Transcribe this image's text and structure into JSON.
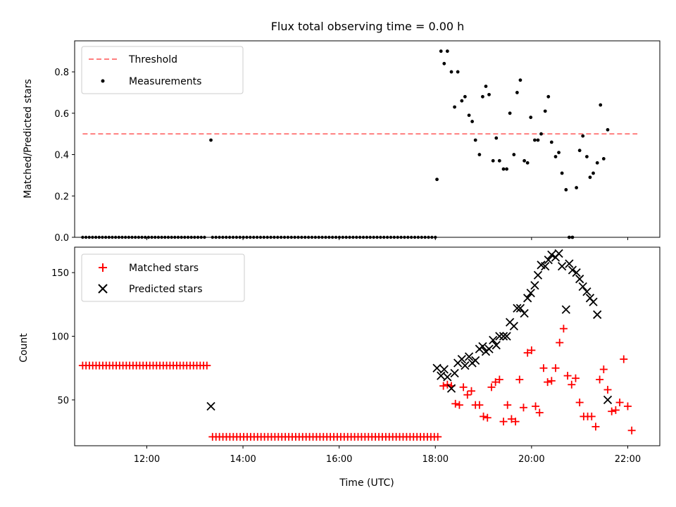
{
  "colors": {
    "threshold": "#ff7f7f",
    "matched": "#ff0000",
    "predicted": "#000000",
    "measurement": "#000000"
  },
  "chart_data": [
    {
      "type": "scatter",
      "title": "Flux total observing time = 0.00 h",
      "ylabel": "Matched/Predicted stars",
      "xlim": [
        "10:30",
        "22:40"
      ],
      "ylim": [
        0,
        0.95
      ],
      "yticks": [
        "0.0",
        "0.2",
        "0.4",
        "0.6",
        "0.8"
      ],
      "ytick_values": [
        0,
        0.2,
        0.4,
        0.6,
        0.8
      ],
      "legend_position": "top-left",
      "legend": [
        "Threshold",
        "Measurements"
      ],
      "threshold": {
        "name": "Threshold",
        "y": 0.5,
        "x_range": [
          "10:40",
          "22:12"
        ],
        "style": "dashed"
      },
      "measurements": {
        "name": "Measurements",
        "zeros_from": "10:40",
        "zeros_to": "13:12",
        "zeros_count": 38,
        "zeros2_from": "13:22",
        "zeros2_to": "18:00",
        "zeros2_count": 66,
        "points": [
          [
            "13:20",
            0.47
          ],
          [
            "18:02",
            0.28
          ],
          [
            "18:07",
            0.9
          ],
          [
            "18:11",
            0.84
          ],
          [
            "18:15",
            0.9
          ],
          [
            "18:20",
            0.8
          ],
          [
            "18:24",
            0.63
          ],
          [
            "18:28",
            0.8
          ],
          [
            "18:33",
            0.66
          ],
          [
            "18:37",
            0.68
          ],
          [
            "18:42",
            0.59
          ],
          [
            "18:46",
            0.56
          ],
          [
            "18:50",
            0.47
          ],
          [
            "18:55",
            0.4
          ],
          [
            "18:59",
            0.68
          ],
          [
            "19:03",
            0.73
          ],
          [
            "19:07",
            0.69
          ],
          [
            "19:12",
            0.37
          ],
          [
            "19:16",
            0.48
          ],
          [
            "19:20",
            0.37
          ],
          [
            "19:25",
            0.33
          ],
          [
            "19:29",
            0.33
          ],
          [
            "19:33",
            0.6
          ],
          [
            "19:38",
            0.4
          ],
          [
            "19:42",
            0.7
          ],
          [
            "19:46",
            0.76
          ],
          [
            "19:51",
            0.37
          ],
          [
            "19:55",
            0.36
          ],
          [
            "19:59",
            0.58
          ],
          [
            "20:04",
            0.47
          ],
          [
            "20:08",
            0.47
          ],
          [
            "20:12",
            0.5
          ],
          [
            "20:17",
            0.61
          ],
          [
            "20:21",
            0.68
          ],
          [
            "20:25",
            0.46
          ],
          [
            "20:30",
            0.39
          ],
          [
            "20:34",
            0.41
          ],
          [
            "20:38",
            0.31
          ],
          [
            "20:43",
            0.23
          ],
          [
            "20:47",
            0.0
          ],
          [
            "20:51",
            0.0
          ],
          [
            "20:56",
            0.24
          ],
          [
            "21:00",
            0.42
          ],
          [
            "21:04",
            0.49
          ],
          [
            "21:09",
            0.39
          ],
          [
            "21:13",
            0.29
          ],
          [
            "21:17",
            0.31
          ],
          [
            "21:22",
            0.36
          ],
          [
            "21:26",
            0.64
          ],
          [
            "21:30",
            0.38
          ],
          [
            "21:35",
            0.52
          ]
        ]
      }
    },
    {
      "type": "scatter",
      "title": "",
      "xlabel": "Time (UTC)",
      "ylabel": "Count",
      "xlim": [
        "10:30",
        "22:40"
      ],
      "xticks": [
        "12:00",
        "14:00",
        "16:00",
        "18:00",
        "20:00",
        "22:00"
      ],
      "ylim": [
        14,
        170
      ],
      "yticks": [
        "50",
        "100",
        "150"
      ],
      "ytick_values": [
        50,
        100,
        150
      ],
      "legend_position": "top-left",
      "legend": [
        "Matched stars",
        "Predicted stars"
      ],
      "matched_flat": [
        {
          "from": "10:40",
          "to": "13:15",
          "count": 38,
          "y": 77
        },
        {
          "from": "13:22",
          "to": "18:03",
          "count": 66,
          "y": 21
        }
      ],
      "matched": [
        [
          "18:10",
          61
        ],
        [
          "18:15",
          62
        ],
        [
          "18:20",
          61
        ],
        [
          "18:25",
          47
        ],
        [
          "18:30",
          46
        ],
        [
          "18:35",
          60
        ],
        [
          "18:40",
          54
        ],
        [
          "18:45",
          57
        ],
        [
          "18:50",
          46
        ],
        [
          "18:55",
          46
        ],
        [
          "19:00",
          37
        ],
        [
          "19:05",
          36
        ],
        [
          "19:10",
          60
        ],
        [
          "19:15",
          64
        ],
        [
          "19:20",
          66
        ],
        [
          "19:25",
          33
        ],
        [
          "19:30",
          46
        ],
        [
          "19:35",
          35
        ],
        [
          "19:40",
          33
        ],
        [
          "19:45",
          66
        ],
        [
          "19:50",
          44
        ],
        [
          "19:55",
          87
        ],
        [
          "20:00",
          89
        ],
        [
          "20:05",
          45
        ],
        [
          "20:10",
          40
        ],
        [
          "20:15",
          75
        ],
        [
          "20:20",
          64
        ],
        [
          "20:25",
          65
        ],
        [
          "20:30",
          75
        ],
        [
          "20:35",
          95
        ],
        [
          "20:40",
          106
        ],
        [
          "20:45",
          69
        ],
        [
          "20:50",
          62
        ],
        [
          "20:55",
          67
        ],
        [
          "21:00",
          48
        ],
        [
          "21:05",
          37
        ],
        [
          "21:10",
          37
        ],
        [
          "21:15",
          37
        ],
        [
          "21:20",
          29
        ],
        [
          "21:25",
          66
        ],
        [
          "21:30",
          74
        ],
        [
          "21:35",
          58
        ],
        [
          "21:40",
          41
        ],
        [
          "21:45",
          42
        ],
        [
          "21:50",
          48
        ],
        [
          "21:55",
          82
        ],
        [
          "22:00",
          45
        ],
        [
          "22:05",
          26
        ]
      ],
      "predicted": [
        [
          "13:20",
          45
        ],
        [
          "18:02",
          75
        ],
        [
          "18:07",
          69
        ],
        [
          "18:11",
          74
        ],
        [
          "18:15",
          68
        ],
        [
          "18:20",
          59
        ],
        [
          "18:24",
          71
        ],
        [
          "18:28",
          79
        ],
        [
          "18:33",
          82
        ],
        [
          "18:37",
          77
        ],
        [
          "18:42",
          84
        ],
        [
          "18:46",
          79
        ],
        [
          "18:50",
          81
        ],
        [
          "18:55",
          90
        ],
        [
          "18:59",
          92
        ],
        [
          "19:03",
          88
        ],
        [
          "19:07",
          90
        ],
        [
          "19:12",
          97
        ],
        [
          "19:16",
          93
        ],
        [
          "19:20",
          100
        ],
        [
          "19:25",
          100
        ],
        [
          "19:29",
          100
        ],
        [
          "19:33",
          111
        ],
        [
          "19:38",
          108
        ],
        [
          "19:42",
          122
        ],
        [
          "19:46",
          122
        ],
        [
          "19:51",
          118
        ],
        [
          "19:55",
          130
        ],
        [
          "19:59",
          134
        ],
        [
          "20:04",
          140
        ],
        [
          "20:08",
          148
        ],
        [
          "20:12",
          156
        ],
        [
          "20:17",
          155
        ],
        [
          "20:21",
          160
        ],
        [
          "20:25",
          164
        ],
        [
          "20:30",
          162
        ],
        [
          "20:34",
          165
        ],
        [
          "20:38",
          155
        ],
        [
          "20:43",
          121
        ],
        [
          "20:47",
          157
        ],
        [
          "20:51",
          152
        ],
        [
          "20:56",
          150
        ],
        [
          "21:00",
          145
        ],
        [
          "21:04",
          139
        ],
        [
          "21:09",
          135
        ],
        [
          "21:13",
          130
        ],
        [
          "21:17",
          127
        ],
        [
          "21:22",
          117
        ],
        [
          "21:35",
          50
        ]
      ]
    }
  ]
}
